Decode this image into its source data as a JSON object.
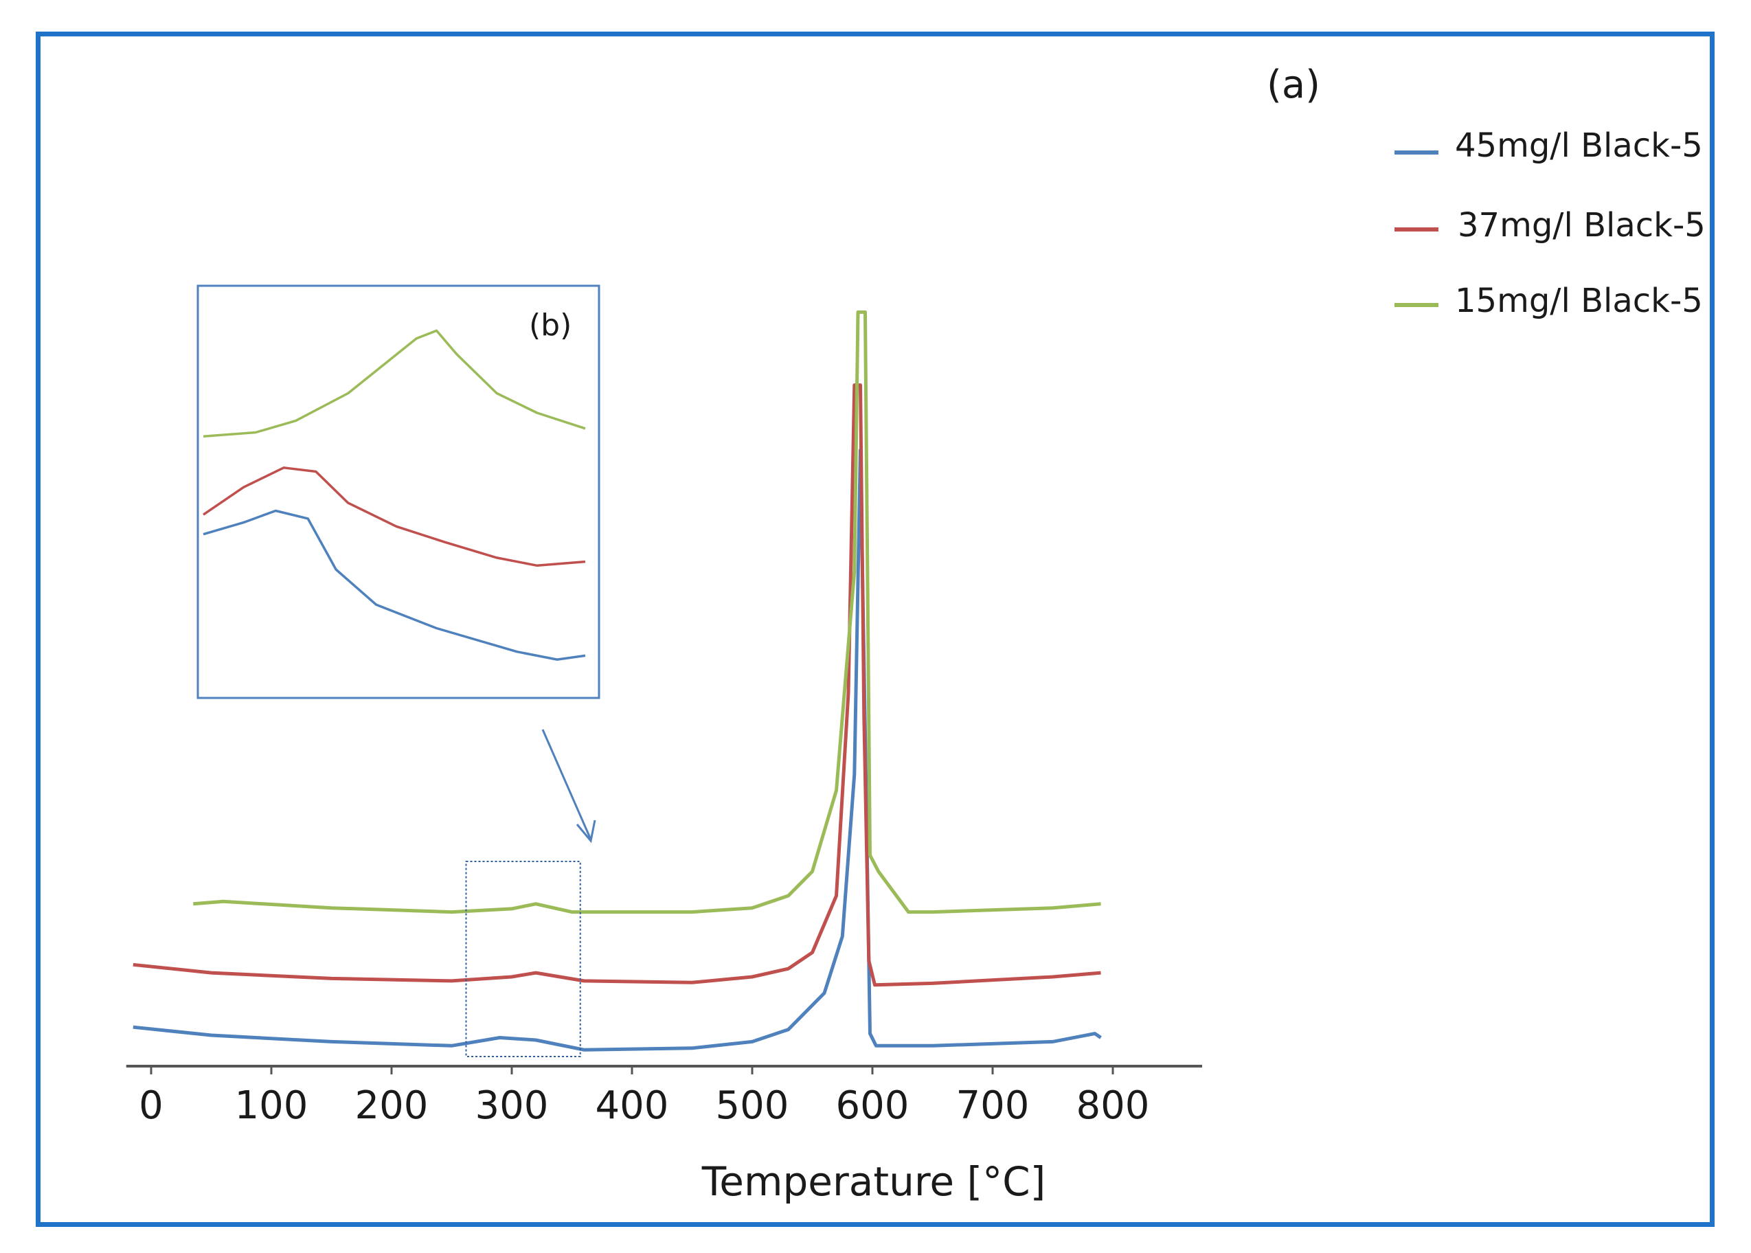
{
  "chart_data": {
    "type": "line",
    "panel_label": "(a)",
    "inset_label": "(b)",
    "xlabel": "Temperature [°C]",
    "ylabel": "",
    "xlim": [
      -15,
      840
    ],
    "ylim": [
      0,
      100
    ],
    "xticks": [
      0,
      100,
      200,
      300,
      400,
      500,
      600,
      700,
      800
    ],
    "grid": false,
    "legend_position": "top-right",
    "zoom_region": [
      262,
      357
    ],
    "series": [
      {
        "name": "45mg/l Black-5",
        "color": "#4f81bd",
        "x": [
          -15,
          50,
          150,
          250,
          290,
          320,
          360,
          450,
          500,
          530,
          560,
          575,
          585,
          590,
          594,
          598,
          603,
          650,
          750,
          785,
          790
        ],
        "y": [
          3.8,
          2.8,
          2.0,
          1.5,
          2.5,
          2.2,
          1.0,
          1.2,
          2.0,
          3.5,
          8.0,
          15.0,
          35.0,
          75.0,
          40.0,
          3.0,
          1.5,
          1.5,
          2.0,
          3.0,
          2.5
        ]
      },
      {
        "name": "37mg/l Black-5",
        "color": "#c0504d",
        "x": [
          -15,
          50,
          150,
          250,
          300,
          320,
          360,
          450,
          500,
          530,
          550,
          570,
          580,
          585,
          590,
          593,
          597,
          602,
          650,
          750,
          790
        ],
        "y": [
          11.5,
          10.5,
          9.8,
          9.5,
          10.0,
          10.5,
          9.5,
          9.3,
          10.0,
          11.0,
          13.0,
          20.0,
          45.0,
          83.0,
          83.0,
          42.0,
          12.0,
          9.0,
          9.2,
          10.0,
          10.5
        ]
      },
      {
        "name": "15mg/l Black-5",
        "color": "#9bbb59",
        "x": [
          35,
          60,
          150,
          250,
          300,
          320,
          350,
          450,
          500,
          530,
          550,
          570,
          585,
          588,
          590,
          594,
          598,
          605,
          630,
          650,
          750,
          790
        ],
        "y": [
          19.0,
          19.3,
          18.5,
          18.0,
          18.4,
          19.0,
          18.0,
          18.0,
          18.5,
          20.0,
          23.0,
          33.0,
          60.0,
          92.0,
          92.0,
          92.0,
          25.0,
          23.0,
          18.0,
          18.0,
          18.5,
          19.0
        ]
      }
    ],
    "inset": {
      "x_range": [
        262,
        357
      ],
      "series": [
        {
          "name": "45mg/l Black-5",
          "x": [
            262,
            272,
            280,
            288,
            295,
            305,
            320,
            340,
            350,
            357
          ],
          "y": [
            64,
            67,
            70,
            68,
            55,
            46,
            40,
            34,
            32,
            33
          ]
        },
        {
          "name": "37mg/l Black-5",
          "x": [
            262,
            272,
            282,
            290,
            298,
            310,
            322,
            335,
            345,
            357
          ],
          "y": [
            69,
            76,
            81,
            80,
            72,
            66,
            62,
            58,
            56,
            57
          ]
        },
        {
          "name": "15mg/l Black-5",
          "x": [
            262,
            275,
            285,
            298,
            315,
            320,
            325,
            335,
            345,
            357
          ],
          "y": [
            89,
            90,
            93,
            100,
            114,
            116,
            110,
            100,
            95,
            91
          ]
        }
      ]
    }
  }
}
